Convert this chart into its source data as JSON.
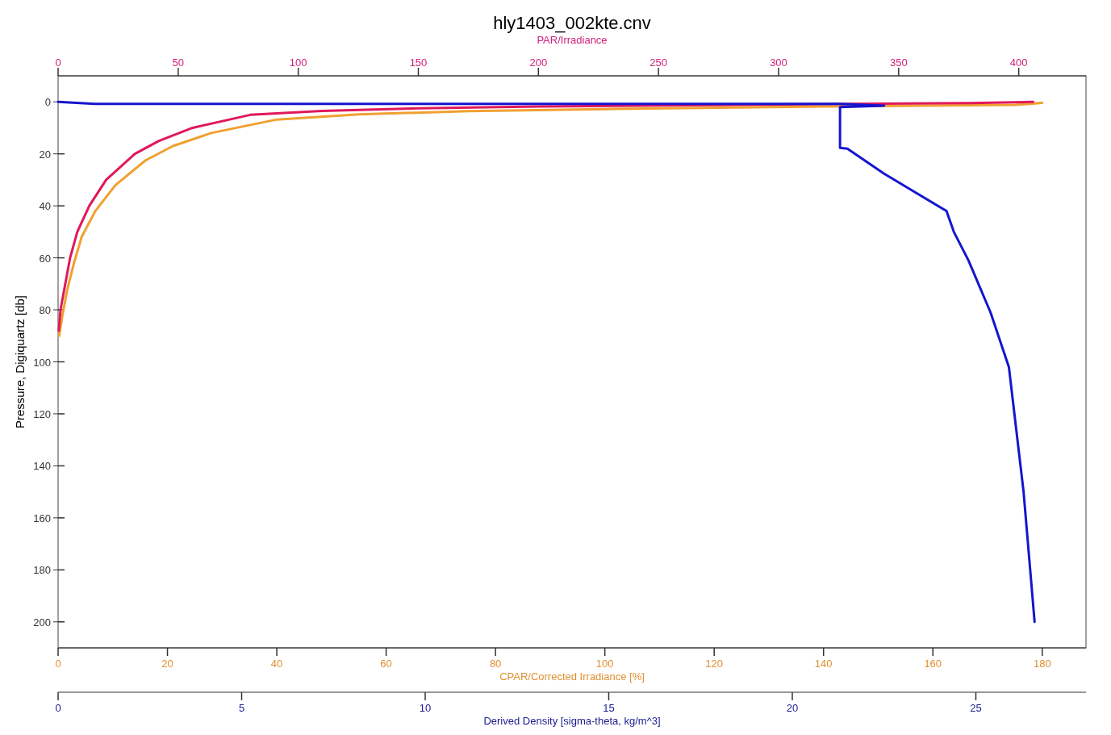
{
  "chart_data": [
    {
      "type": "line",
      "title": "hly1403_002kte.cnv",
      "xlabel": "CPAR/Corrected Irradiance [%]",
      "x2label": "PAR/Irradiance",
      "ylabel": "Pressure, Digiquartz [db]",
      "xlim": [
        0,
        188
      ],
      "xticks": [
        0,
        20,
        40,
        60,
        80,
        100,
        120,
        140,
        160,
        180
      ],
      "x2lim": [
        0,
        428
      ],
      "x2ticks": [
        0,
        50,
        100,
        150,
        200,
        250,
        300,
        350,
        400
      ],
      "ylim": [
        210,
        -10
      ],
      "yticks": [
        0,
        20,
        40,
        60,
        80,
        100,
        120,
        140,
        160,
        180,
        200
      ],
      "marker": "none",
      "line_style": "solid",
      "series": [
        {
          "color": "#f0a030",
          "x": [
            180,
            175,
            140,
            100,
            75,
            55,
            40,
            28,
            21,
            16,
            10.5,
            6.8,
            4.3,
            2.9,
            1.7,
            0.8,
            0.2
          ],
          "values": [
            0.4,
            1.2,
            1.8,
            2.8,
            3.6,
            4.8,
            6.8,
            12,
            17,
            22.5,
            32,
            42,
            52,
            62,
            72,
            82,
            90
          ]
        },
        {
          "color": "#e0185a",
          "axis": "x2",
          "x": [
            406,
            380,
            300,
            200,
            150,
            110,
            80,
            56,
            42,
            32,
            20,
            13,
            8,
            5,
            3,
            1,
            0.3
          ],
          "values": [
            0,
            0.5,
            1,
            1.8,
            2.5,
            3.5,
            5,
            10,
            15,
            20,
            30,
            40,
            50,
            60,
            70,
            80,
            88
          ]
        }
      ]
    },
    {
      "type": "line",
      "xlabel": "Derived Density [sigma-theta, kg/m^3]",
      "xlim": [
        0,
        28
      ],
      "xticks": [
        0,
        5,
        10,
        15,
        20,
        25
      ],
      "ylim": [
        210,
        -10
      ],
      "tick_labels": "x",
      "marker": "none",
      "line_style": "solid",
      "series": [
        {
          "color": "#1515d0",
          "x": [
            0,
            1,
            10,
            21.3,
            22.5,
            21.3,
            21.3,
            21.5,
            22.5,
            24.2,
            24.4,
            24.8,
            25.4,
            25.9,
            26.3,
            26.6
          ],
          "values": [
            0,
            0.8,
            0.8,
            0.8,
            1.5,
            2,
            17.7,
            18,
            27.6,
            42,
            50,
            61,
            81,
            102,
            150,
            200
          ]
        }
      ]
    }
  ]
}
